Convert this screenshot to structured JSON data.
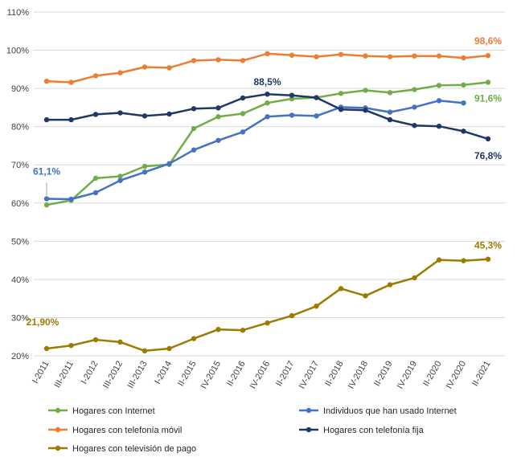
{
  "chart_data": {
    "type": "line",
    "title": "",
    "xlabel": "",
    "ylabel": "",
    "ylim": [
      20,
      110
    ],
    "yticks": [
      "20%",
      "30%",
      "40%",
      "50%",
      "60%",
      "70%",
      "80%",
      "90%",
      "100%",
      "110%"
    ],
    "grid": true,
    "legend_position": "bottom",
    "categories": [
      "I-2011",
      "III-2011",
      "I-2012",
      "III-2012",
      "III-2013",
      "I-2014",
      "II-2015",
      "IV-2015",
      "II-2016",
      "IV-2016",
      "II-2017",
      "IV-2017",
      "II-2018",
      "IV-2018",
      "II-2019",
      "IV-2019",
      "II-2020",
      "IV-2020",
      "II-2021"
    ],
    "series": [
      {
        "name": "Hogares con Internet",
        "color": "#70ad47",
        "values": [
          59.5,
          60.7,
          66.5,
          67.0,
          69.6,
          70.1,
          79.5,
          82.6,
          83.4,
          86.2,
          87.3,
          87.6,
          88.7,
          89.5,
          88.9,
          89.7,
          90.8,
          90.9,
          91.6
        ]
      },
      {
        "name": "Individuos que han usado Internet",
        "color": "#4472c4",
        "values": [
          61.1,
          61.0,
          62.7,
          65.9,
          68.1,
          70.3,
          73.9,
          76.4,
          78.6,
          82.6,
          83.0,
          82.8,
          85.1,
          84.9,
          83.8,
          85.1,
          86.8,
          86.2,
          null
        ]
      },
      {
        "name": "Hogares con telefonía móvil",
        "color": "#ed7d31",
        "values": [
          91.9,
          91.6,
          93.3,
          94.1,
          95.6,
          95.4,
          97.3,
          97.5,
          97.3,
          99.1,
          98.7,
          98.3,
          98.9,
          98.5,
          98.3,
          98.5,
          98.5,
          98.0,
          98.6
        ]
      },
      {
        "name": "Hogares con telefonía fija",
        "color": "#203864",
        "values": [
          81.8,
          81.8,
          83.2,
          83.6,
          82.8,
          83.3,
          84.7,
          84.9,
          87.5,
          88.5,
          88.2,
          87.6,
          84.5,
          84.3,
          81.8,
          80.3,
          80.1,
          78.8,
          76.8
        ]
      },
      {
        "name": "Hogares con televisión de pago",
        "color": "#9c7b00",
        "values": [
          21.9,
          22.7,
          24.2,
          23.6,
          21.3,
          21.9,
          24.5,
          26.9,
          26.7,
          28.6,
          30.5,
          33.0,
          37.6,
          35.7,
          38.6,
          40.4,
          45.1,
          44.9,
          45.3
        ]
      }
    ],
    "annotations": [
      {
        "text": "61,1%",
        "series": 1,
        "index": 0,
        "color": "#4472c4"
      },
      {
        "text": "88,5%",
        "series": 3,
        "index": 9,
        "color": "#203864"
      },
      {
        "text": "98,6%",
        "series": 2,
        "index": 18,
        "color": "#ed7d31"
      },
      {
        "text": "91,6%",
        "series": 0,
        "index": 18,
        "color": "#70ad47"
      },
      {
        "text": "76,8%",
        "series": 3,
        "index": 18,
        "color": "#203864"
      },
      {
        "text": "45,3%",
        "series": 4,
        "index": 18,
        "color": "#9c7b00"
      },
      {
        "text": "21,90%",
        "series": 4,
        "index": 0,
        "color": "#9c7b00"
      }
    ]
  }
}
